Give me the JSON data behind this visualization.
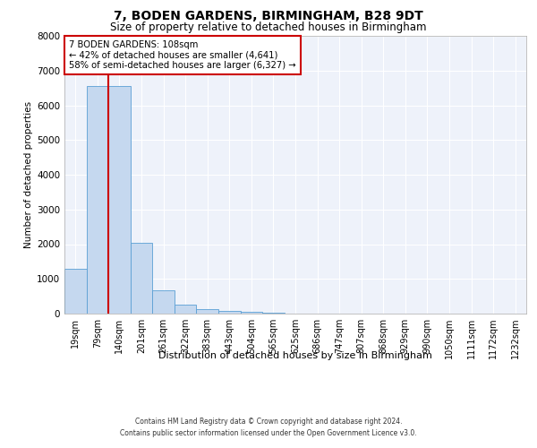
{
  "title": "7, BODEN GARDENS, BIRMINGHAM, B28 9DT",
  "subtitle": "Size of property relative to detached houses in Birmingham",
  "xlabel": "Distribution of detached houses by size in Birmingham",
  "ylabel": "Number of detached properties",
  "bin_labels": [
    "19sqm",
    "79sqm",
    "140sqm",
    "201sqm",
    "261sqm",
    "322sqm",
    "383sqm",
    "443sqm",
    "504sqm",
    "565sqm",
    "625sqm",
    "686sqm",
    "747sqm",
    "807sqm",
    "868sqm",
    "929sqm",
    "990sqm",
    "1050sqm",
    "1111sqm",
    "1172sqm",
    "1232sqm"
  ],
  "bar_heights": [
    1300,
    6550,
    6550,
    2050,
    680,
    270,
    140,
    80,
    50,
    30,
    10,
    5,
    3,
    2,
    1,
    0,
    0,
    0,
    0,
    0,
    0
  ],
  "bar_color": "#c5d8ef",
  "bar_edge_color": "#5a9fd4",
  "yticks": [
    0,
    1000,
    2000,
    3000,
    4000,
    5000,
    6000,
    7000,
    8000
  ],
  "property_line_x": 1.5,
  "property_line_color": "#cc0000",
  "annotation_text": "7 BODEN GARDENS: 108sqm\n← 42% of detached houses are smaller (4,641)\n58% of semi-detached houses are larger (6,327) →",
  "annotation_box_color": "#cc0000",
  "background_color": "#eef2fa",
  "grid_color": "#ffffff",
  "footer_line1": "Contains HM Land Registry data © Crown copyright and database right 2024.",
  "footer_line2": "Contains public sector information licensed under the Open Government Licence v3.0."
}
